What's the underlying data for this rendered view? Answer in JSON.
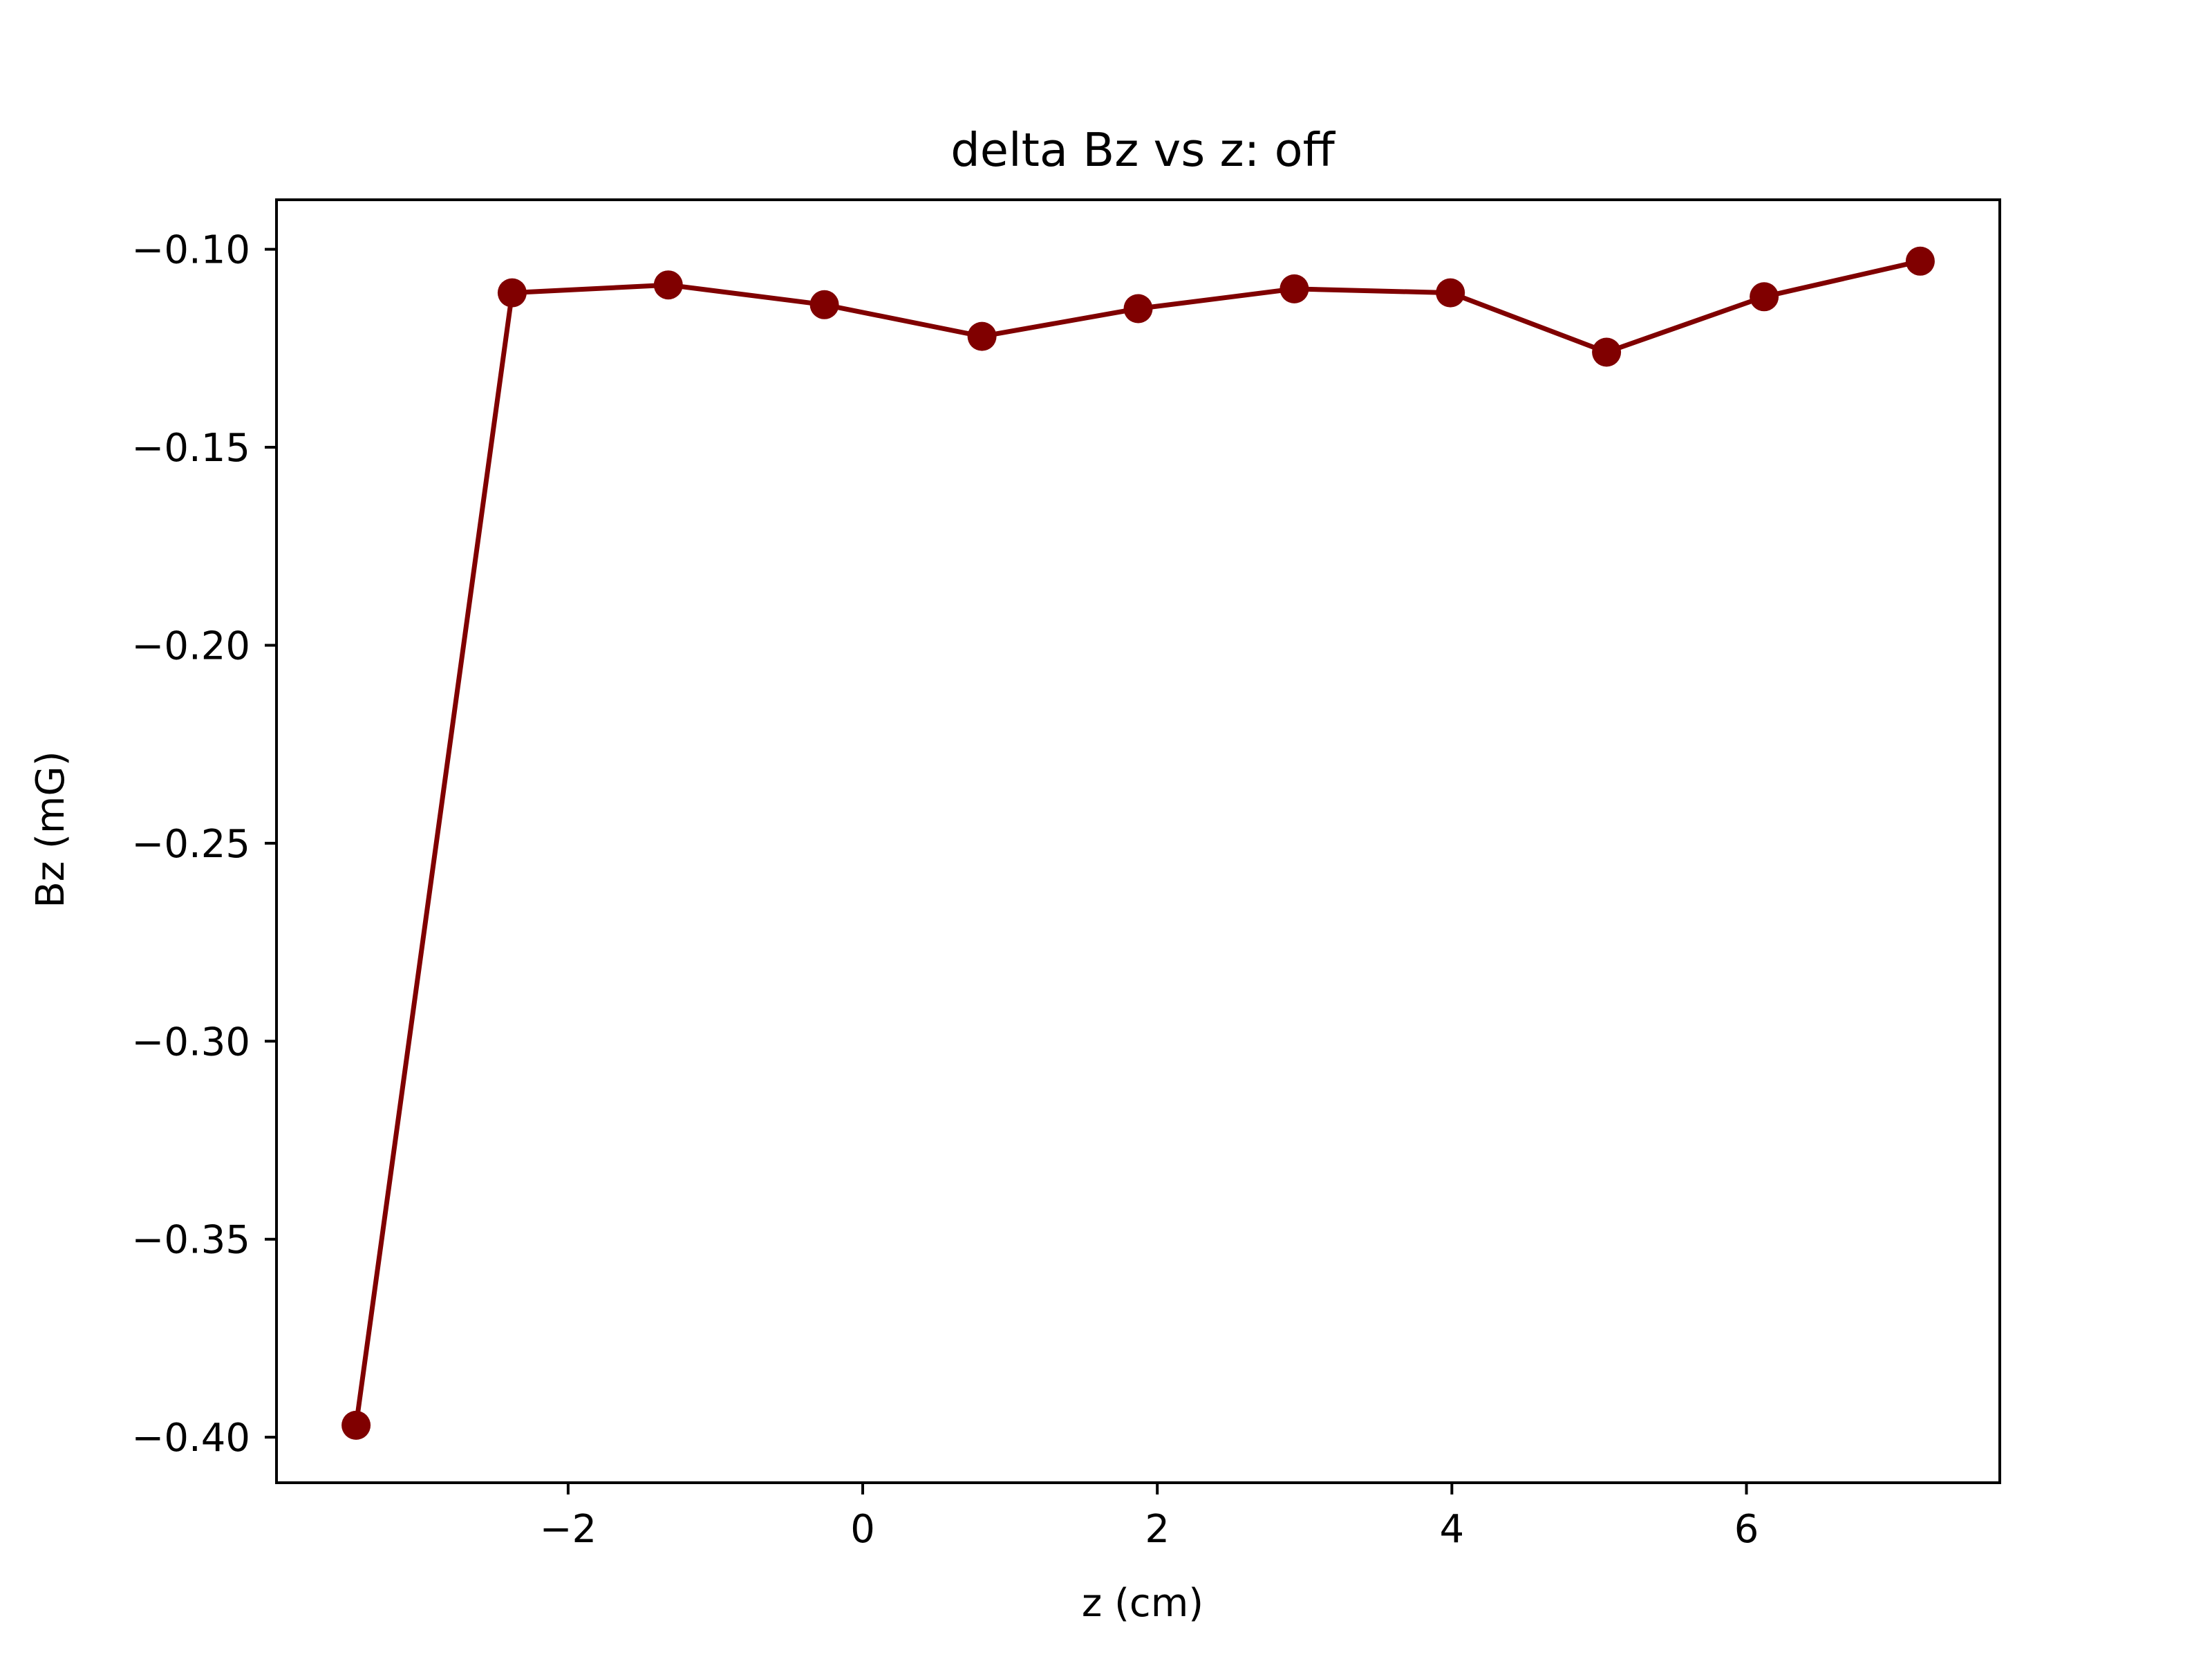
{
  "chart_data": {
    "type": "line",
    "title": "delta  Bz vs z: off",
    "xlabel": "z (cm)",
    "ylabel": "Bz (mG)",
    "xlim": [
      -3.98,
      7.72
    ],
    "ylim": [
      -0.4115,
      -0.0875
    ],
    "xticks": [
      -2,
      0,
      2,
      4,
      6
    ],
    "xtick_labels": [
      "−2",
      "0",
      "2",
      "4",
      "6"
    ],
    "yticks": [
      -0.1,
      -0.15,
      -0.2,
      -0.25,
      -0.3,
      -0.35,
      -0.4
    ],
    "ytick_labels": [
      "−0.10",
      "−0.15",
      "−0.20",
      "−0.25",
      "−0.30",
      "−0.35",
      "−0.40"
    ],
    "grid": false,
    "legend": "none",
    "color": "#800000",
    "marker": "circle",
    "series": [
      {
        "x": [
          -3.44,
          -2.38,
          -1.32,
          -0.26,
          0.81,
          1.87,
          2.93,
          3.99,
          5.05,
          6.12,
          7.18
        ],
        "y": [
          -0.397,
          -0.111,
          -0.109,
          -0.114,
          -0.122,
          -0.115,
          -0.11,
          -0.111,
          -0.126,
          -0.112,
          -0.103
        ]
      }
    ]
  }
}
